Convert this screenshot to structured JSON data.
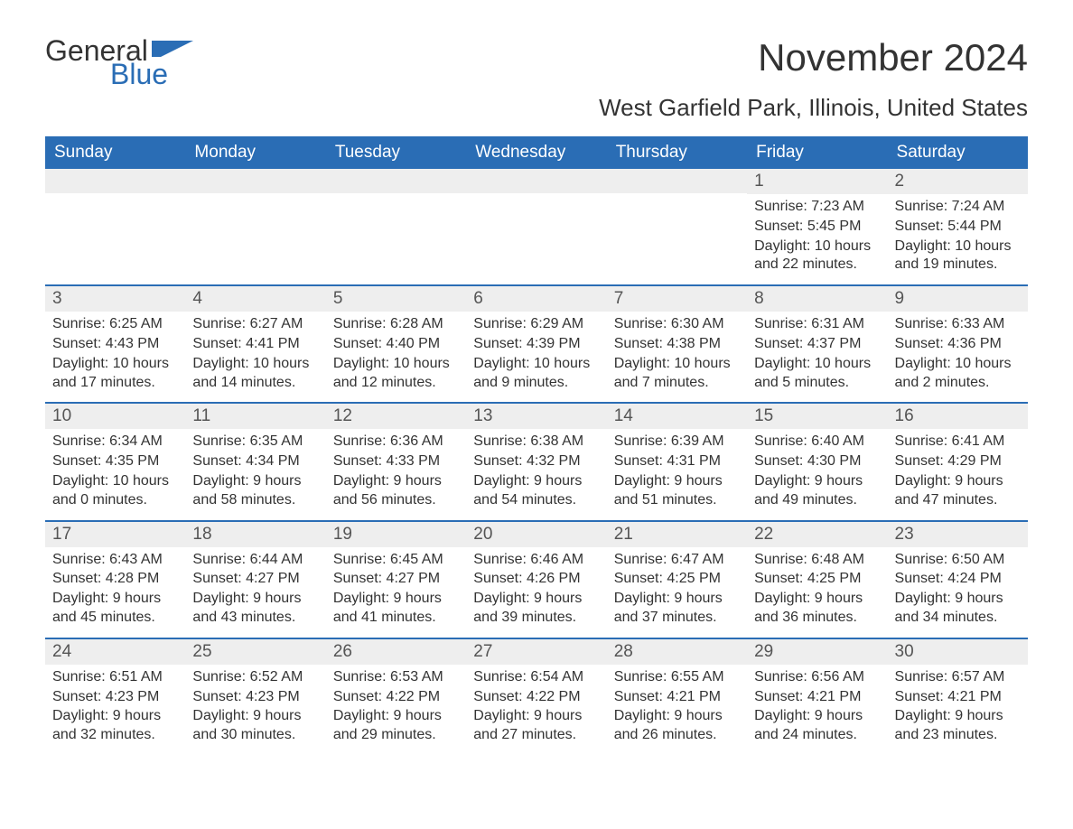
{
  "brand": {
    "word1": "General",
    "word2": "Blue",
    "color_primary": "#2a6db5"
  },
  "title": "November 2024",
  "location": "West Garfield Park, Illinois, United States",
  "colors": {
    "header_bg": "#2a6db5",
    "header_text": "#ffffff",
    "daynum_bg": "#eeeeee",
    "row_border": "#2a6db5",
    "body_text": "#333333",
    "page_bg": "#ffffff"
  },
  "weekdays": [
    "Sunday",
    "Monday",
    "Tuesday",
    "Wednesday",
    "Thursday",
    "Friday",
    "Saturday"
  ],
  "weeks": [
    [
      {
        "day": "",
        "sunrise": "",
        "sunset": "",
        "daylight": ""
      },
      {
        "day": "",
        "sunrise": "",
        "sunset": "",
        "daylight": ""
      },
      {
        "day": "",
        "sunrise": "",
        "sunset": "",
        "daylight": ""
      },
      {
        "day": "",
        "sunrise": "",
        "sunset": "",
        "daylight": ""
      },
      {
        "day": "",
        "sunrise": "",
        "sunset": "",
        "daylight": ""
      },
      {
        "day": "1",
        "sunrise": "Sunrise: 7:23 AM",
        "sunset": "Sunset: 5:45 PM",
        "daylight": "Daylight: 10 hours and 22 minutes."
      },
      {
        "day": "2",
        "sunrise": "Sunrise: 7:24 AM",
        "sunset": "Sunset: 5:44 PM",
        "daylight": "Daylight: 10 hours and 19 minutes."
      }
    ],
    [
      {
        "day": "3",
        "sunrise": "Sunrise: 6:25 AM",
        "sunset": "Sunset: 4:43 PM",
        "daylight": "Daylight: 10 hours and 17 minutes."
      },
      {
        "day": "4",
        "sunrise": "Sunrise: 6:27 AM",
        "sunset": "Sunset: 4:41 PM",
        "daylight": "Daylight: 10 hours and 14 minutes."
      },
      {
        "day": "5",
        "sunrise": "Sunrise: 6:28 AM",
        "sunset": "Sunset: 4:40 PM",
        "daylight": "Daylight: 10 hours and 12 minutes."
      },
      {
        "day": "6",
        "sunrise": "Sunrise: 6:29 AM",
        "sunset": "Sunset: 4:39 PM",
        "daylight": "Daylight: 10 hours and 9 minutes."
      },
      {
        "day": "7",
        "sunrise": "Sunrise: 6:30 AM",
        "sunset": "Sunset: 4:38 PM",
        "daylight": "Daylight: 10 hours and 7 minutes."
      },
      {
        "day": "8",
        "sunrise": "Sunrise: 6:31 AM",
        "sunset": "Sunset: 4:37 PM",
        "daylight": "Daylight: 10 hours and 5 minutes."
      },
      {
        "day": "9",
        "sunrise": "Sunrise: 6:33 AM",
        "sunset": "Sunset: 4:36 PM",
        "daylight": "Daylight: 10 hours and 2 minutes."
      }
    ],
    [
      {
        "day": "10",
        "sunrise": "Sunrise: 6:34 AM",
        "sunset": "Sunset: 4:35 PM",
        "daylight": "Daylight: 10 hours and 0 minutes."
      },
      {
        "day": "11",
        "sunrise": "Sunrise: 6:35 AM",
        "sunset": "Sunset: 4:34 PM",
        "daylight": "Daylight: 9 hours and 58 minutes."
      },
      {
        "day": "12",
        "sunrise": "Sunrise: 6:36 AM",
        "sunset": "Sunset: 4:33 PM",
        "daylight": "Daylight: 9 hours and 56 minutes."
      },
      {
        "day": "13",
        "sunrise": "Sunrise: 6:38 AM",
        "sunset": "Sunset: 4:32 PM",
        "daylight": "Daylight: 9 hours and 54 minutes."
      },
      {
        "day": "14",
        "sunrise": "Sunrise: 6:39 AM",
        "sunset": "Sunset: 4:31 PM",
        "daylight": "Daylight: 9 hours and 51 minutes."
      },
      {
        "day": "15",
        "sunrise": "Sunrise: 6:40 AM",
        "sunset": "Sunset: 4:30 PM",
        "daylight": "Daylight: 9 hours and 49 minutes."
      },
      {
        "day": "16",
        "sunrise": "Sunrise: 6:41 AM",
        "sunset": "Sunset: 4:29 PM",
        "daylight": "Daylight: 9 hours and 47 minutes."
      }
    ],
    [
      {
        "day": "17",
        "sunrise": "Sunrise: 6:43 AM",
        "sunset": "Sunset: 4:28 PM",
        "daylight": "Daylight: 9 hours and 45 minutes."
      },
      {
        "day": "18",
        "sunrise": "Sunrise: 6:44 AM",
        "sunset": "Sunset: 4:27 PM",
        "daylight": "Daylight: 9 hours and 43 minutes."
      },
      {
        "day": "19",
        "sunrise": "Sunrise: 6:45 AM",
        "sunset": "Sunset: 4:27 PM",
        "daylight": "Daylight: 9 hours and 41 minutes."
      },
      {
        "day": "20",
        "sunrise": "Sunrise: 6:46 AM",
        "sunset": "Sunset: 4:26 PM",
        "daylight": "Daylight: 9 hours and 39 minutes."
      },
      {
        "day": "21",
        "sunrise": "Sunrise: 6:47 AM",
        "sunset": "Sunset: 4:25 PM",
        "daylight": "Daylight: 9 hours and 37 minutes."
      },
      {
        "day": "22",
        "sunrise": "Sunrise: 6:48 AM",
        "sunset": "Sunset: 4:25 PM",
        "daylight": "Daylight: 9 hours and 36 minutes."
      },
      {
        "day": "23",
        "sunrise": "Sunrise: 6:50 AM",
        "sunset": "Sunset: 4:24 PM",
        "daylight": "Daylight: 9 hours and 34 minutes."
      }
    ],
    [
      {
        "day": "24",
        "sunrise": "Sunrise: 6:51 AM",
        "sunset": "Sunset: 4:23 PM",
        "daylight": "Daylight: 9 hours and 32 minutes."
      },
      {
        "day": "25",
        "sunrise": "Sunrise: 6:52 AM",
        "sunset": "Sunset: 4:23 PM",
        "daylight": "Daylight: 9 hours and 30 minutes."
      },
      {
        "day": "26",
        "sunrise": "Sunrise: 6:53 AM",
        "sunset": "Sunset: 4:22 PM",
        "daylight": "Daylight: 9 hours and 29 minutes."
      },
      {
        "day": "27",
        "sunrise": "Sunrise: 6:54 AM",
        "sunset": "Sunset: 4:22 PM",
        "daylight": "Daylight: 9 hours and 27 minutes."
      },
      {
        "day": "28",
        "sunrise": "Sunrise: 6:55 AM",
        "sunset": "Sunset: 4:21 PM",
        "daylight": "Daylight: 9 hours and 26 minutes."
      },
      {
        "day": "29",
        "sunrise": "Sunrise: 6:56 AM",
        "sunset": "Sunset: 4:21 PM",
        "daylight": "Daylight: 9 hours and 24 minutes."
      },
      {
        "day": "30",
        "sunrise": "Sunrise: 6:57 AM",
        "sunset": "Sunset: 4:21 PM",
        "daylight": "Daylight: 9 hours and 23 minutes."
      }
    ]
  ]
}
